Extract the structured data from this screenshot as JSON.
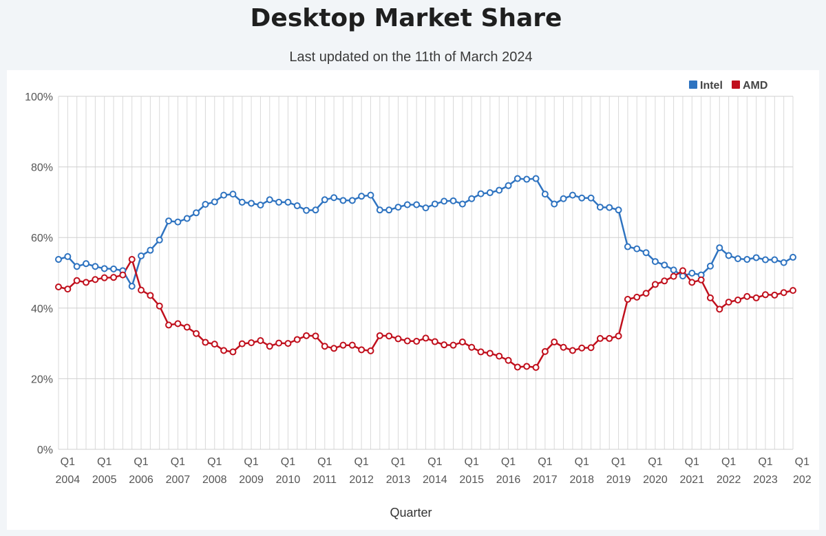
{
  "header": {
    "title": "Desktop Market Share",
    "subtitle": "Last updated on the 11th of March 2024"
  },
  "chart_data": {
    "type": "line",
    "title": "Desktop Market Share",
    "subtitle": "Last updated on the 11th of March 2024",
    "xlabel": "Quarter",
    "ylabel": "",
    "ylim": [
      0,
      100
    ],
    "y_ticks": [
      "0%",
      "20%",
      "40%",
      "60%",
      "80%",
      "100%"
    ],
    "x_tick_labels": [
      {
        "quarter": "Q1",
        "year": "2004"
      },
      {
        "quarter": "Q1",
        "year": "2005"
      },
      {
        "quarter": "Q1",
        "year": "2006"
      },
      {
        "quarter": "Q1",
        "year": "2007"
      },
      {
        "quarter": "Q1",
        "year": "2008"
      },
      {
        "quarter": "Q1",
        "year": "2009"
      },
      {
        "quarter": "Q1",
        "year": "2010"
      },
      {
        "quarter": "Q1",
        "year": "2011"
      },
      {
        "quarter": "Q1",
        "year": "2012"
      },
      {
        "quarter": "Q1",
        "year": "2013"
      },
      {
        "quarter": "Q1",
        "year": "2014"
      },
      {
        "quarter": "Q1",
        "year": "2015"
      },
      {
        "quarter": "Q1",
        "year": "2016"
      },
      {
        "quarter": "Q1",
        "year": "2017"
      },
      {
        "quarter": "Q1",
        "year": "2018"
      },
      {
        "quarter": "Q1",
        "year": "2019"
      },
      {
        "quarter": "Q1",
        "year": "2020"
      },
      {
        "quarter": "Q1",
        "year": "2021"
      },
      {
        "quarter": "Q1",
        "year": "2022"
      },
      {
        "quarter": "Q1",
        "year": "2023"
      },
      {
        "quarter": "Q1",
        "year": "202"
      }
    ],
    "grid": true,
    "legend_position": "top-right",
    "series": [
      {
        "name": "Intel",
        "color": "#2e73c0",
        "values": [
          53.8,
          54.6,
          51.8,
          52.6,
          51.8,
          51.2,
          51.1,
          50.6,
          46.2,
          54.8,
          56.4,
          59.3,
          64.7,
          64.4,
          65.4,
          67.0,
          69.4,
          70.1,
          72.0,
          72.3,
          70.0,
          69.7,
          69.2,
          70.7,
          70.0,
          70.0,
          69.0,
          67.7,
          67.8,
          70.7,
          71.3,
          70.5,
          70.5,
          71.7,
          72.0,
          67.8,
          67.8,
          68.6,
          69.3,
          69.3,
          68.4,
          69.5,
          70.3,
          70.4,
          69.5,
          71.0,
          72.4,
          72.7,
          73.4,
          74.7,
          76.7,
          76.5,
          76.7,
          72.3,
          69.5,
          71.0,
          72.0,
          71.2,
          71.2,
          68.6,
          68.5,
          67.8,
          57.4,
          56.8,
          55.7,
          53.2,
          52.2,
          50.8,
          49.1,
          49.9,
          49.4,
          51.9,
          57.1,
          54.9,
          54.0,
          53.8,
          54.3,
          53.7,
          53.7,
          52.9,
          54.4
        ]
      },
      {
        "name": "AMD",
        "color": "#c00f1c",
        "values": [
          46.0,
          45.4,
          47.8,
          47.3,
          48.1,
          48.6,
          48.7,
          49.4,
          53.8,
          45.1,
          43.6,
          40.6,
          35.2,
          35.6,
          34.6,
          32.8,
          30.3,
          29.8,
          28.0,
          27.6,
          29.9,
          30.2,
          30.8,
          29.2,
          30.1,
          30.0,
          31.1,
          32.2,
          32.1,
          29.2,
          28.6,
          29.5,
          29.5,
          28.2,
          27.9,
          32.2,
          32.1,
          31.3,
          30.7,
          30.6,
          31.5,
          30.5,
          29.6,
          29.5,
          30.4,
          28.9,
          27.6,
          27.2,
          26.4,
          25.2,
          23.3,
          23.5,
          23.2,
          27.7,
          30.4,
          28.9,
          28.0,
          28.7,
          28.8,
          31.4,
          31.4,
          32.1,
          42.5,
          43.1,
          44.2,
          46.7,
          47.7,
          49.0,
          50.6,
          47.3,
          48.0,
          42.9,
          39.7,
          41.7,
          42.3,
          43.3,
          42.9,
          43.8,
          43.7,
          44.4,
          45.0
        ]
      }
    ]
  }
}
